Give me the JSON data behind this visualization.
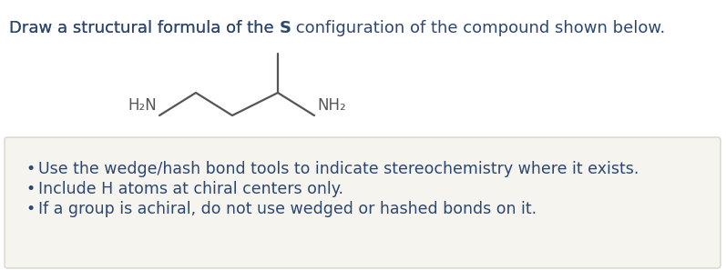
{
  "title_part1": "Draw a structural formula of the ",
  "title_bold": "S",
  "title_part2": " configuration of the compound shown below.",
  "title_color": "#2c4770",
  "mol_color": "#555555",
  "label_h2n": "H₂N",
  "label_nh2": "NH₂",
  "box_bg": "#f5f4ee",
  "box_border": "#d8d4c8",
  "bullet_color": "#2c4770",
  "bullet_line1": "Use the wedge/hash bond tools to indicate stereochemistry where it exists.",
  "bullet_line2": "Include H atoms at chiral centers only.",
  "bullet_line3": "If a group is achiral, do not use wedged or hashed bonds on it.",
  "font_size_title": 13,
  "font_size_bullet": 12.5
}
